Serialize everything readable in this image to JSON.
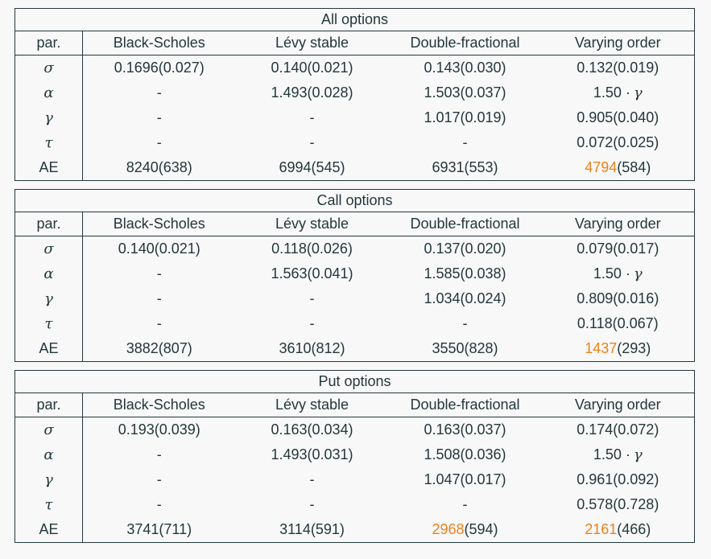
{
  "colors": {
    "text": "#23373b",
    "accent": "#eb811b",
    "rule": "#23373b",
    "background": "#f8f8f8"
  },
  "tables": [
    {
      "title": "All options",
      "headers": [
        "par.",
        "Black-Scholes",
        "Lévy stable",
        "Double-fractional",
        "Varying order"
      ],
      "rows": [
        {
          "param": "σ",
          "greek": true,
          "cells": [
            {
              "m": "0.1696(0.027)"
            },
            {
              "m": "0.140(0.021)"
            },
            {
              "m": "0.143(0.030)"
            },
            {
              "m": "0.132(0.019)"
            }
          ]
        },
        {
          "param": "α",
          "greek": true,
          "cells": [
            {
              "m": "-"
            },
            {
              "m": "1.493(0.028)"
            },
            {
              "m": "1.503(0.037)"
            },
            {
              "m": "1.50 ·",
              "p": "γ",
              "pGreek": true
            }
          ]
        },
        {
          "param": "γ",
          "greek": true,
          "cells": [
            {
              "m": "-"
            },
            {
              "m": "-"
            },
            {
              "m": "1.017(0.019)"
            },
            {
              "m": "0.905(0.040)"
            }
          ]
        },
        {
          "param": "τ",
          "greek": true,
          "cells": [
            {
              "m": "-"
            },
            {
              "m": "-"
            },
            {
              "m": "-"
            },
            {
              "m": "0.072(0.025)"
            }
          ]
        },
        {
          "param": "AE",
          "greek": false,
          "cells": [
            {
              "m": "8240(638)"
            },
            {
              "m": "6994(545)"
            },
            {
              "m": "6931(553)"
            },
            {
              "m": "4794",
              "p": "(584)",
              "hl": true
            }
          ]
        }
      ]
    },
    {
      "title": "Call options",
      "headers": [
        "par.",
        "Black-Scholes",
        "Lévy stable",
        "Double-fractional",
        "Varying order"
      ],
      "rows": [
        {
          "param": "σ",
          "greek": true,
          "cells": [
            {
              "m": "0.140(0.021)"
            },
            {
              "m": "0.118(0.026)"
            },
            {
              "m": "0.137(0.020)"
            },
            {
              "m": "0.079(0.017)"
            }
          ]
        },
        {
          "param": "α",
          "greek": true,
          "cells": [
            {
              "m": "-"
            },
            {
              "m": "1.563(0.041)"
            },
            {
              "m": "1.585(0.038)"
            },
            {
              "m": "1.50 ·",
              "p": "γ",
              "pGreek": true
            }
          ]
        },
        {
          "param": "γ",
          "greek": true,
          "cells": [
            {
              "m": "-"
            },
            {
              "m": "-"
            },
            {
              "m": "1.034(0.024)"
            },
            {
              "m": "0.809(0.016)"
            }
          ]
        },
        {
          "param": "τ",
          "greek": true,
          "cells": [
            {
              "m": "-"
            },
            {
              "m": "-"
            },
            {
              "m": "-"
            },
            {
              "m": "0.118(0.067)"
            }
          ]
        },
        {
          "param": "AE",
          "greek": false,
          "cells": [
            {
              "m": "3882(807)"
            },
            {
              "m": "3610(812)"
            },
            {
              "m": "3550(828)"
            },
            {
              "m": "1437",
              "p": "(293)",
              "hl": true
            }
          ]
        }
      ]
    },
    {
      "title": "Put options",
      "headers": [
        "par.",
        "Black-Scholes",
        "Lévy stable",
        "Double-fractional",
        "Varying order"
      ],
      "rows": [
        {
          "param": "σ",
          "greek": true,
          "cells": [
            {
              "m": "0.193(0.039)"
            },
            {
              "m": "0.163(0.034)"
            },
            {
              "m": "0.163(0.037)"
            },
            {
              "m": "0.174(0.072)"
            }
          ]
        },
        {
          "param": "α",
          "greek": true,
          "cells": [
            {
              "m": "-"
            },
            {
              "m": "1.493(0.031)"
            },
            {
              "m": "1.508(0.036)"
            },
            {
              "m": "1.50 ·",
              "p": "γ",
              "pGreek": true
            }
          ]
        },
        {
          "param": "γ",
          "greek": true,
          "cells": [
            {
              "m": "-"
            },
            {
              "m": "-"
            },
            {
              "m": "1.047(0.017)"
            },
            {
              "m": "0.961(0.092)"
            }
          ]
        },
        {
          "param": "τ",
          "greek": true,
          "cells": [
            {
              "m": "-"
            },
            {
              "m": "-"
            },
            {
              "m": "-"
            },
            {
              "m": "0.578(0.728)"
            }
          ]
        },
        {
          "param": "AE",
          "greek": false,
          "cells": [
            {
              "m": "3741(711)"
            },
            {
              "m": "3114(591)"
            },
            {
              "m": "2968",
              "p": "(594)",
              "hl": true
            },
            {
              "m": "2161",
              "p": "(466)",
              "hl": true
            }
          ]
        }
      ]
    }
  ]
}
